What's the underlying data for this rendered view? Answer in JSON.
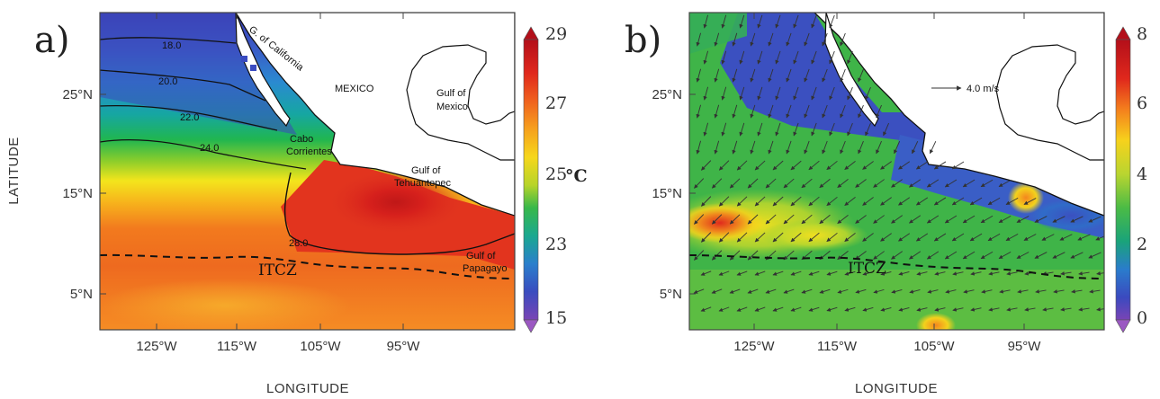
{
  "panel_a": {
    "label": "a)",
    "x_axis_title": "LONGITUDE",
    "y_axis_title": "LATITUDE",
    "x_ticks": [
      "125°W",
      "115°W",
      "105°W",
      "95°W"
    ],
    "y_ticks": [
      "25°N",
      "15°N",
      "5°N"
    ],
    "colorbar_ticks": [
      "29",
      "27",
      "25",
      "23",
      "15"
    ],
    "colorbar_unit": "°C",
    "contour_labels": [
      "18.0",
      "20.0",
      "22.0",
      "24.0",
      "28.0"
    ],
    "place_labels": {
      "gulf_california": "G. of California",
      "mexico": "MEXICO",
      "gulf_mexico_1": "Gulf of",
      "gulf_mexico_2": "Mexico",
      "cabo_1": "Cabo",
      "cabo_2": "Corrientes",
      "tehuantepec_1": "Gulf of",
      "tehuantepec_2": "Tehuantepec",
      "papagayo_1": "Gulf of",
      "papagayo_2": "Papagayo"
    },
    "itcz_label": "ITCZ"
  },
  "panel_b": {
    "label": "b)",
    "x_axis_title": "LONGITUDE",
    "x_ticks": [
      "125°W",
      "115°W",
      "105°W",
      "95°W"
    ],
    "y_ticks": [
      "25°N",
      "15°N",
      "5°N"
    ],
    "colorbar_ticks": [
      "8",
      "6",
      "4",
      "2",
      "0"
    ],
    "vector_ref_label": "4.0 m/s",
    "itcz_label": "ITCZ"
  },
  "colors": {
    "sst_cold": "#3b4fc0",
    "sst_mid": "#1fb25a",
    "sst_warm": "#e03a1e",
    "land": "#ffffff"
  }
}
